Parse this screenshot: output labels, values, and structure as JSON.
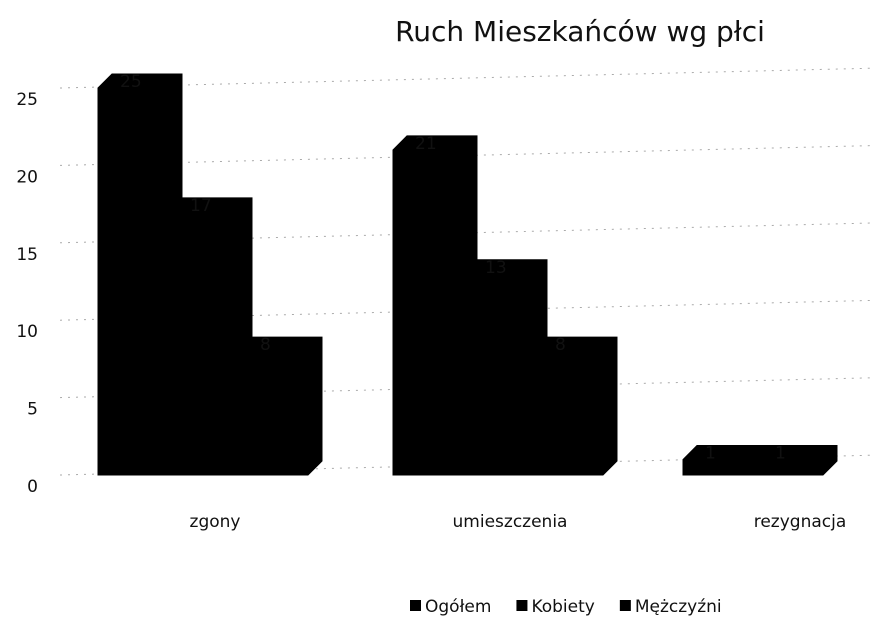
{
  "chart_data": {
    "type": "bar3d",
    "title": "Ruch Mieszkańców wg płci",
    "categories": [
      "zgony",
      "umieszczenia",
      "rezygnacja"
    ],
    "series": [
      {
        "name": "Ogółem",
        "color": "#000000",
        "values": [
          25,
          21,
          1
        ]
      },
      {
        "name": "Kobiety",
        "color": "#000000",
        "values": [
          17,
          13,
          1
        ]
      },
      {
        "name": "Mężczyźni",
        "color": "#000000",
        "values": [
          8,
          8,
          null
        ]
      }
    ],
    "ylim": [
      0,
      25
    ],
    "yticks": [
      0,
      5,
      10,
      15,
      20,
      25
    ],
    "grid": true,
    "legend": "bottom"
  }
}
